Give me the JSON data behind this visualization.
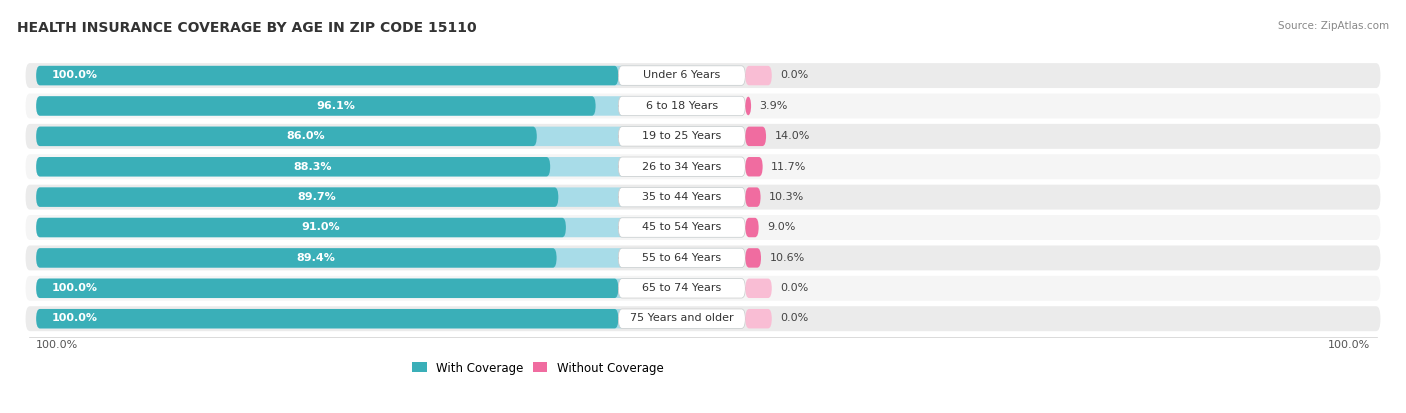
{
  "title": "HEALTH INSURANCE COVERAGE BY AGE IN ZIP CODE 15110",
  "source": "Source: ZipAtlas.com",
  "categories": [
    "Under 6 Years",
    "6 to 18 Years",
    "19 to 25 Years",
    "26 to 34 Years",
    "35 to 44 Years",
    "45 to 54 Years",
    "55 to 64 Years",
    "65 to 74 Years",
    "75 Years and older"
  ],
  "with_coverage": [
    100.0,
    96.1,
    86.0,
    88.3,
    89.7,
    91.0,
    89.4,
    100.0,
    100.0
  ],
  "without_coverage": [
    0.0,
    3.9,
    14.0,
    11.7,
    10.3,
    9.0,
    10.6,
    0.0,
    0.0
  ],
  "color_with_dark": "#3AAFB8",
  "color_with_light": "#A8DCE8",
  "color_without_dark": "#F06CA0",
  "color_without_light": "#F9BDD4",
  "color_row_bg_even": "#EBEBEB",
  "color_row_bg_odd": "#F5F5F5",
  "title_fontsize": 10,
  "bar_label_fontsize": 8,
  "cat_label_fontsize": 8,
  "source_fontsize": 7.5,
  "legend_label_with": "With Coverage",
  "legend_label_without": "Without Coverage",
  "x_left_label": "100.0%",
  "x_right_label": "100.0%"
}
